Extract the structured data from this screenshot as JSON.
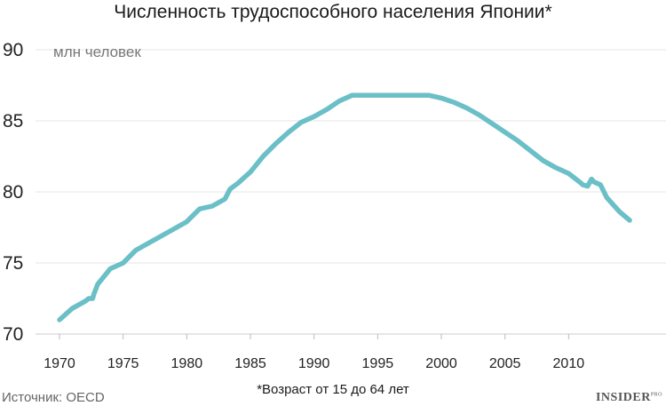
{
  "chart_data": {
    "type": "line",
    "title": "Численность трудоспособного населения Японии*",
    "unit_label": "млн человек",
    "footnote": "*Возраст от 15 до 64 лет",
    "source": "Источник: OECD",
    "brand": "INSIDER",
    "brand_suffix": "PRO",
    "line_color": "#6bbfc7",
    "grid": true,
    "xlim": [
      1970,
      2015
    ],
    "ylim": [
      70,
      90
    ],
    "x_ticks": [
      1970,
      1975,
      1980,
      1985,
      1990,
      1995,
      2000,
      2005,
      2010
    ],
    "y_ticks": [
      70,
      75,
      80,
      85,
      90
    ],
    "series": [
      {
        "x": [
          1970,
          1971,
          1972,
          1972.3,
          1972.6,
          1972.7,
          1973,
          1974,
          1975,
          1976,
          1977,
          1978,
          1979,
          1980,
          1981,
          1982,
          1983,
          1983.4,
          1984,
          1985,
          1986,
          1987,
          1988,
          1989,
          1990,
          1991,
          1992,
          1993,
          1994,
          1995,
          1996,
          1997,
          1998,
          1999,
          2000,
          2001,
          2002,
          2003,
          2004,
          2005,
          2006,
          2007,
          2008,
          2009,
          2010,
          2011,
          2011.1,
          2011.5,
          2011.8,
          2012,
          2012.5,
          2013,
          2014,
          2014.8
        ],
        "y": [
          71.0,
          71.8,
          72.3,
          72.5,
          72.5,
          72.8,
          73.5,
          74.6,
          75.0,
          75.9,
          76.4,
          76.9,
          77.4,
          77.9,
          78.8,
          79.0,
          79.5,
          80.2,
          80.6,
          81.4,
          82.5,
          83.4,
          84.2,
          84.9,
          85.3,
          85.8,
          86.4,
          86.8,
          86.8,
          86.8,
          86.8,
          86.8,
          86.8,
          86.8,
          86.6,
          86.3,
          85.9,
          85.4,
          84.8,
          84.2,
          83.6,
          82.9,
          82.2,
          81.7,
          81.3,
          80.6,
          80.5,
          80.4,
          80.9,
          80.7,
          80.5,
          79.6,
          78.6,
          78.0
        ]
      }
    ]
  }
}
